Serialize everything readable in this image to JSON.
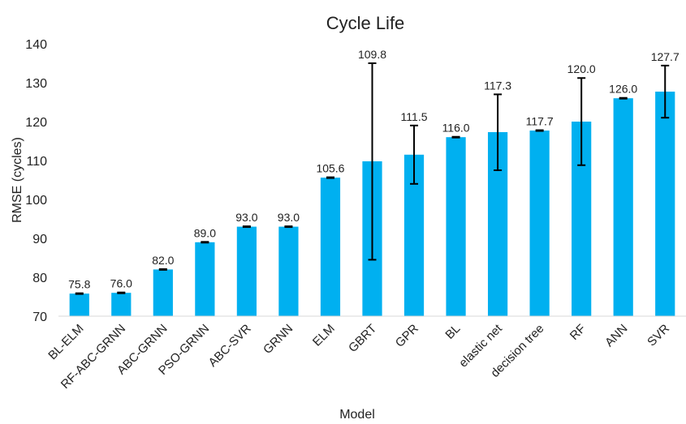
{
  "chart_data": {
    "type": "bar",
    "title": "Cycle Life",
    "xlabel": "Model",
    "ylabel": "RMSE (cycles)",
    "ylim": [
      70,
      140
    ],
    "yticks": [
      70,
      80,
      90,
      100,
      110,
      120,
      130,
      140
    ],
    "grid": false,
    "legend": "none",
    "bar_color": "#00B0F0",
    "categories": [
      "BL-ELM",
      "RF-ABC-GRNN",
      "ABC-GRNN",
      "PSO-GRNN",
      "ABC-SVR",
      "GRNN",
      "ELM",
      "GBRT",
      "GPR",
      "BL",
      "elastic net",
      "decision tree",
      "RF",
      "ANN",
      "SVR"
    ],
    "values": [
      75.8,
      76.0,
      82.0,
      89.0,
      93.0,
      93.0,
      105.6,
      109.8,
      111.5,
      116.0,
      117.3,
      117.7,
      120.0,
      126.0,
      127.7
    ],
    "value_labels": [
      "75.8",
      "76.0",
      "82.0",
      "89.0",
      "93.0",
      "93.0",
      "105.6",
      "109.8",
      "111.5",
      "116.0",
      "117.3",
      "117.7",
      "120.0",
      "126.0",
      "127.7"
    ],
    "error_low": [
      75.7,
      75.9,
      81.9,
      88.9,
      92.9,
      92.9,
      105.5,
      84.5,
      104.0,
      115.9,
      107.5,
      117.6,
      108.8,
      125.9,
      121.0
    ],
    "error_high": [
      75.9,
      76.1,
      82.1,
      89.1,
      93.1,
      93.1,
      105.7,
      135.0,
      119.0,
      116.1,
      127.0,
      117.8,
      131.2,
      126.1,
      134.4
    ]
  }
}
